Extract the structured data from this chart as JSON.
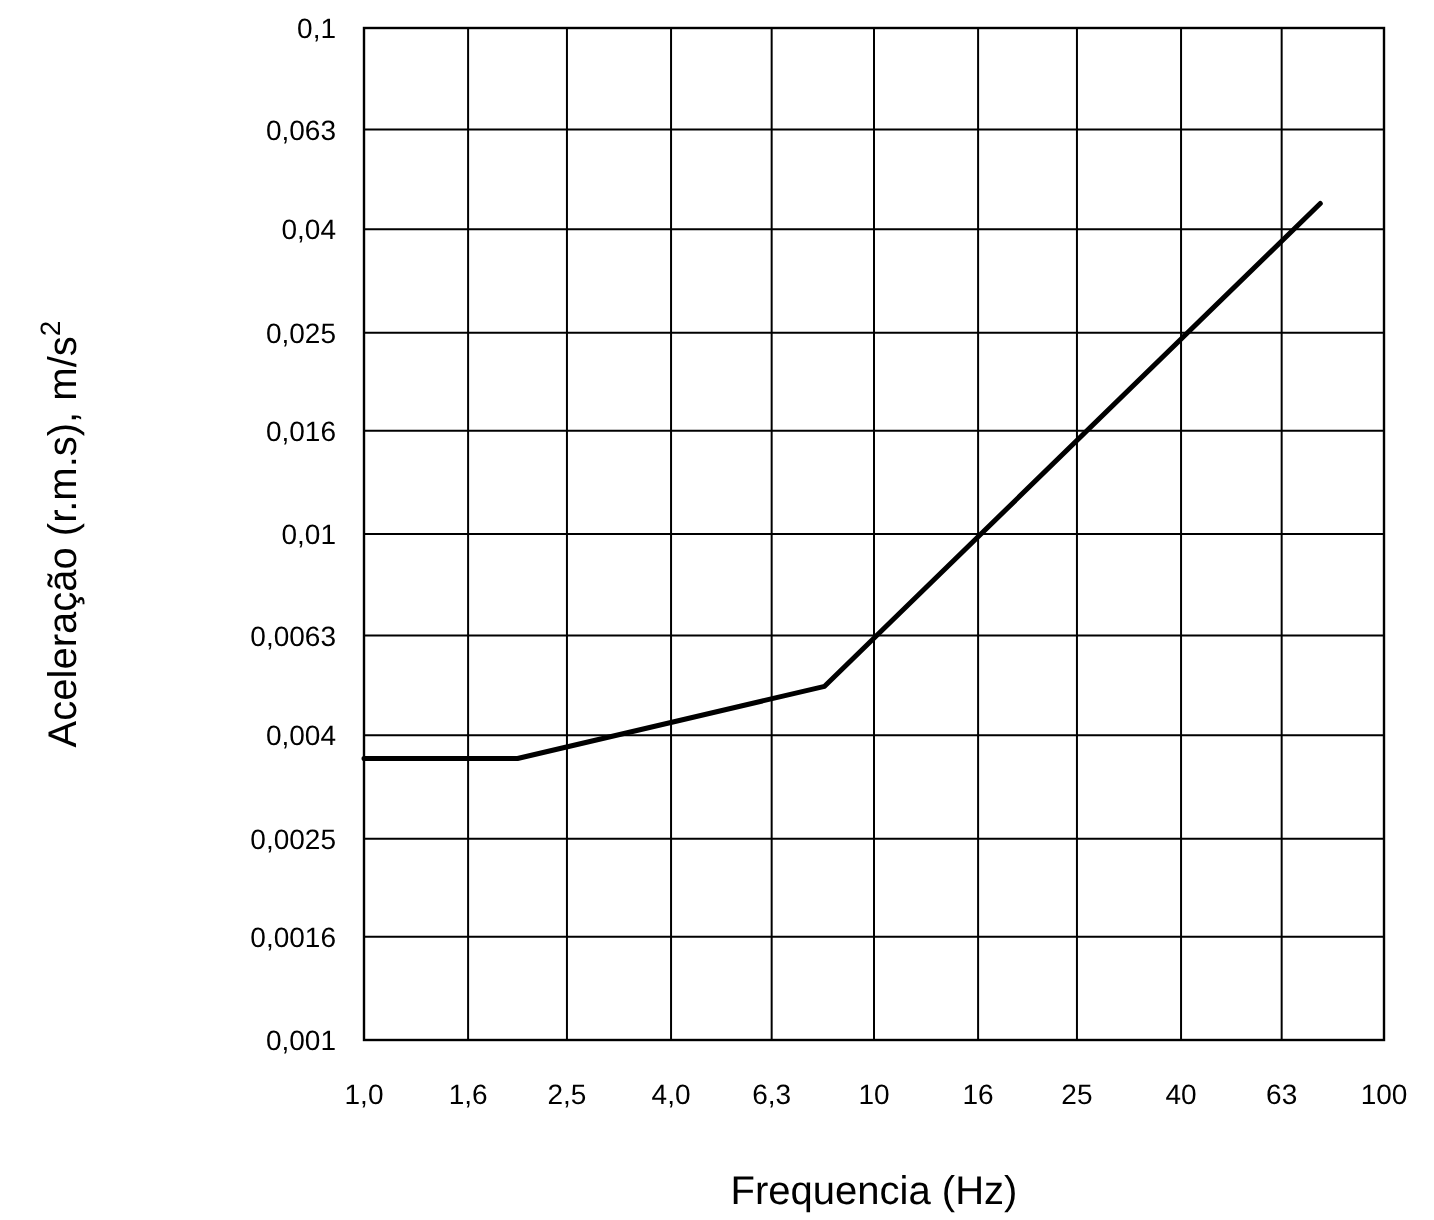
{
  "chart_data": {
    "type": "line",
    "xlabel": "Frequencia (Hz)",
    "ylabel": "Aceleração (r.m.s), m/s$^{2}$",
    "log": "xy",
    "grid": true,
    "marker": "none",
    "line_style": "solid",
    "xlim": [
      1,
      100
    ],
    "xticks": [
      {
        "value": 1,
        "label": "1,0"
      },
      {
        "value": 1.6,
        "label": "1,6"
      },
      {
        "value": 2.5,
        "label": "2,5"
      },
      {
        "value": 4,
        "label": "4,0"
      },
      {
        "value": 6.3,
        "label": "6,3"
      },
      {
        "value": 10,
        "label": "10"
      },
      {
        "value": 16,
        "label": "16"
      },
      {
        "value": 25,
        "label": "25"
      },
      {
        "value": 40,
        "label": "40"
      },
      {
        "value": 63,
        "label": "63"
      },
      {
        "value": 100,
        "label": "100"
      }
    ],
    "ylim": [
      0.001,
      0.1
    ],
    "yticks": [
      {
        "value": 0.001,
        "label": "0,001"
      },
      {
        "value": 0.0016,
        "label": "0,0016"
      },
      {
        "value": 0.0025,
        "label": "0,0025"
      },
      {
        "value": 0.004,
        "label": "0,004"
      },
      {
        "value": 0.0063,
        "label": "0,0063"
      },
      {
        "value": 0.01,
        "label": "0,01"
      },
      {
        "value": 0.016,
        "label": "0,016"
      },
      {
        "value": 0.025,
        "label": "0,025"
      },
      {
        "value": 0.04,
        "label": "0,04"
      },
      {
        "value": 0.063,
        "label": "0,063"
      },
      {
        "value": 0.1,
        "label": "0,1"
      }
    ],
    "x": [
      1,
      2,
      8,
      75
    ],
    "series": [
      {
        "color": "#000000",
        "values": [
          0.0036,
          0.0036,
          0.005,
          0.045
        ]
      }
    ]
  }
}
